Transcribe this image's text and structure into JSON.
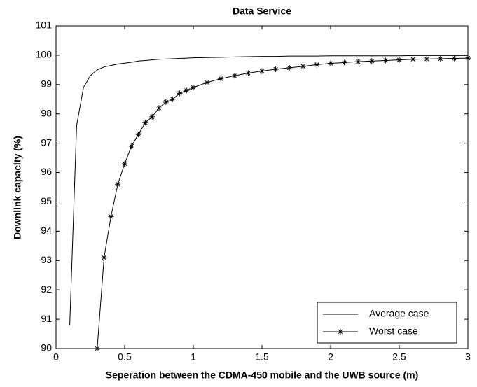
{
  "chart_data": {
    "type": "line",
    "title": "Data  Service",
    "x_label": "Seperation between the CDMA-450 mobile and the UWB source  (m)",
    "y_label": "Downlink  capacity  (%)",
    "x": [
      0.1,
      0.15,
      0.2,
      0.25,
      0.3,
      0.35,
      0.4,
      0.45,
      0.5,
      0.55,
      0.6,
      0.65,
      0.7,
      0.75,
      0.8,
      0.85,
      0.9,
      0.95,
      1.0,
      1.1,
      1.2,
      1.3,
      1.4,
      1.5,
      1.6,
      1.7,
      1.8,
      1.9,
      2.0,
      2.1,
      2.2,
      2.3,
      2.4,
      2.5,
      2.6,
      2.7,
      2.8,
      2.9,
      3.0
    ],
    "series": [
      {
        "name": "Average case",
        "color": "#000000",
        "marker": "none",
        "values": [
          90.8,
          97.6,
          98.9,
          99.3,
          99.5,
          99.6,
          99.65,
          99.7,
          99.73,
          99.76,
          99.8,
          99.82,
          99.84,
          99.86,
          99.87,
          99.88,
          99.89,
          99.9,
          99.91,
          99.92,
          99.93,
          99.94,
          99.95,
          99.96,
          99.96,
          99.97,
          99.97,
          99.97,
          99.98,
          99.98,
          99.98,
          99.98,
          99.98,
          99.98,
          99.99,
          99.99,
          99.99,
          99.99,
          99.99
        ]
      },
      {
        "name": "Worst case",
        "color": "#000000",
        "marker": "asterisk",
        "values": [
          null,
          null,
          null,
          null,
          90,
          93.1,
          94.5,
          95.6,
          96.3,
          96.9,
          97.3,
          97.7,
          97.9,
          98.2,
          98.4,
          98.5,
          98.7,
          98.8,
          98.9,
          99.07,
          99.2,
          99.3,
          99.39,
          99.46,
          99.52,
          99.57,
          99.62,
          99.68,
          99.72,
          99.75,
          99.78,
          99.8,
          99.82,
          99.84,
          99.86,
          99.87,
          99.88,
          99.89,
          99.9
        ]
      }
    ],
    "xlim": [
      0,
      3
    ],
    "xticks": [
      0,
      0.5,
      1,
      1.5,
      2,
      2.5,
      3
    ],
    "ylim": [
      90,
      101
    ],
    "yticks": [
      90,
      91,
      92,
      93,
      94,
      95,
      96,
      97,
      98,
      99,
      100,
      101
    ],
    "grid": false,
    "legend": "lower right"
  }
}
